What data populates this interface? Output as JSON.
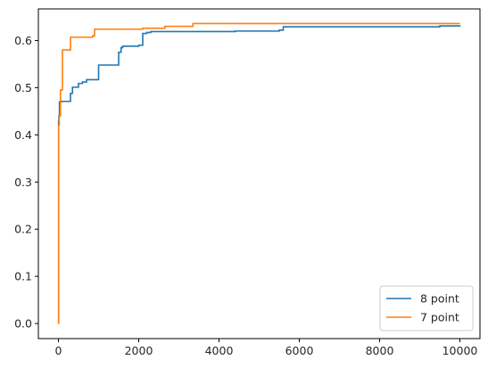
{
  "chart_data": {
    "type": "line",
    "title": "",
    "xlabel": "",
    "ylabel": "",
    "xlim": [
      -500,
      10500
    ],
    "ylim": [
      -0.032,
      0.667
    ],
    "xticks": [
      0,
      2000,
      4000,
      6000,
      8000,
      10000
    ],
    "xtick_labels": [
      "0",
      "2000",
      "4000",
      "6000",
      "8000",
      "10000"
    ],
    "yticks": [
      0.0,
      0.1,
      0.2,
      0.3,
      0.4,
      0.5,
      0.6
    ],
    "ytick_labels": [
      "0.0",
      "0.1",
      "0.2",
      "0.3",
      "0.4",
      "0.5",
      "0.6"
    ],
    "grid": false,
    "legend_position": "lower-right",
    "series": [
      {
        "name": "8 point",
        "color": "#1f77b4",
        "step": true,
        "x": [
          0,
          5,
          10,
          25,
          70,
          300,
          350,
          500,
          600,
          700,
          950,
          1000,
          1500,
          1560,
          1600,
          2000,
          2100,
          2200,
          2300,
          3000,
          3600,
          4400,
          5500,
          5600,
          9500,
          10000
        ],
        "y": [
          0.0,
          0.43,
          0.44,
          0.47,
          0.471,
          0.488,
          0.501,
          0.509,
          0.512,
          0.517,
          0.517,
          0.548,
          0.575,
          0.585,
          0.588,
          0.59,
          0.615,
          0.617,
          0.619,
          0.619,
          0.619,
          0.62,
          0.622,
          0.629,
          0.631,
          0.632
        ]
      },
      {
        "name": "7 point",
        "color": "#ff7f0e",
        "step": true,
        "x": [
          0,
          5,
          20,
          50,
          100,
          280,
          300,
          850,
          900,
          2100,
          2650,
          3350,
          10000
        ],
        "y": [
          0.0,
          0.42,
          0.44,
          0.495,
          0.58,
          0.58,
          0.607,
          0.61,
          0.624,
          0.626,
          0.63,
          0.636,
          0.636
        ]
      }
    ]
  }
}
